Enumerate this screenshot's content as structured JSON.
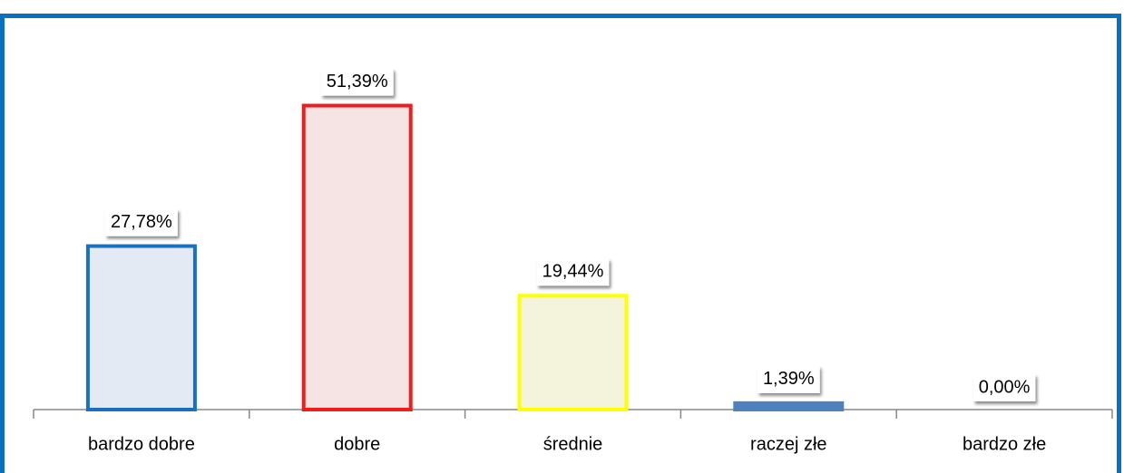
{
  "chart_data": {
    "type": "bar",
    "categories": [
      "bardzo dobre",
      "dobre",
      "średnie",
      "raczej złe",
      "bardzo złe"
    ],
    "values": [
      27.78,
      51.39,
      19.44,
      1.39,
      0.0
    ],
    "value_labels": [
      "27,78%",
      "51,39%",
      "19,44%",
      "1,39%",
      "0,00%"
    ],
    "colors": [
      "#e4eaf3",
      "#f6e3e3",
      "#f4f4dc",
      "#4f81bd",
      "#4f81bd"
    ],
    "edge_colors": [
      "#1a6fc0",
      "#ee1c1c",
      "#ffff00",
      "#4f81bd",
      "#4f81bd"
    ],
    "ylim": [
      0,
      60
    ]
  }
}
